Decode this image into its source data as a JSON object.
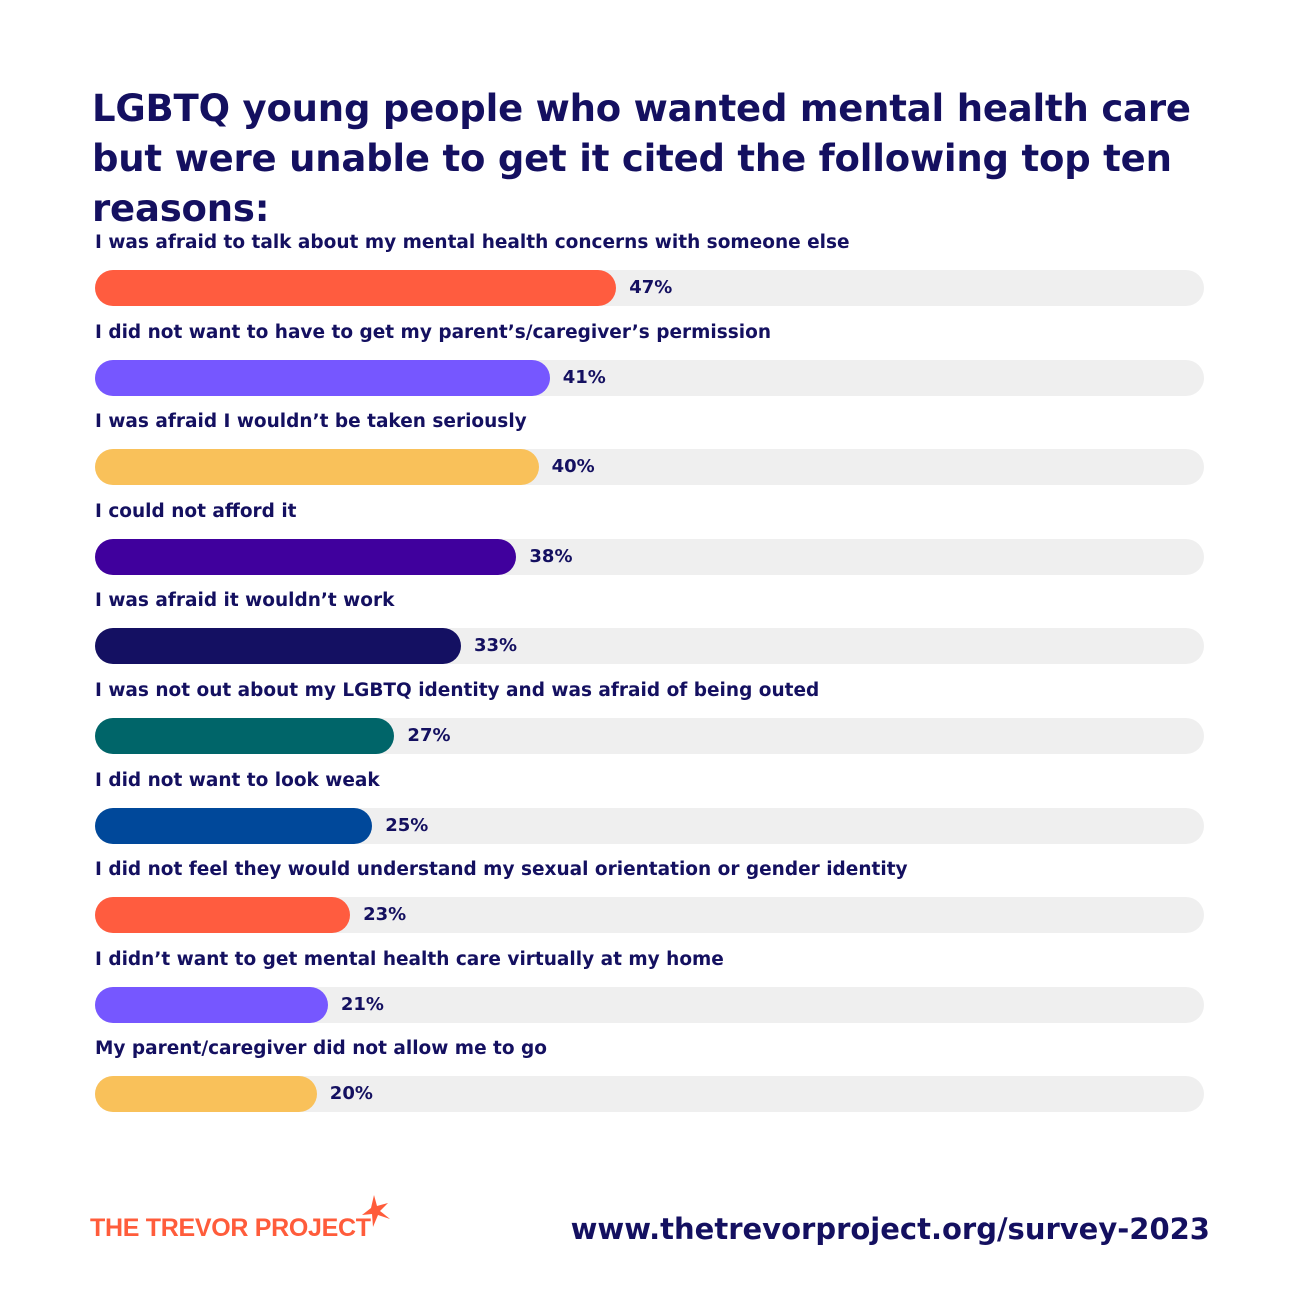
{
  "chart_data": {
    "type": "bar",
    "orientation": "horizontal",
    "title": "LGBTQ young people who wanted mental health care but were unable to get it cited the following top ten reasons:",
    "xlim": [
      0,
      100
    ],
    "categories": [
      "I was afraid to talk about my mental health concerns with someone else",
      "I did not want to have to get my parent’s/caregiver’s permission",
      "I was afraid I wouldn’t be taken seriously",
      "I could not afford it",
      "I was afraid it wouldn’t work",
      "I was not out about my LGBTQ identity and was afraid of being outed",
      "I did not want to look weak",
      "I did not feel they would understand my sexual orientation or gender identity",
      "I didn’t want to get mental health care virtually at my home",
      "My parent/caregiver did not allow me to go"
    ],
    "values": [
      47,
      41,
      40,
      38,
      33,
      27,
      25,
      23,
      21,
      20
    ],
    "value_labels": [
      "47%",
      "41%",
      "40%",
      "38%",
      "33%",
      "27%",
      "25%",
      "23%",
      "21%",
      "20%"
    ],
    "colors": [
      "#ff5c3f",
      "#7657ff",
      "#f9c15a",
      "#40009d",
      "#141062",
      "#006569",
      "#00489a",
      "#ff5c3f",
      "#7657ff",
      "#f9c15a"
    ],
    "track_color": "#efefef",
    "grid": false
  },
  "footer": {
    "logo_text": "THE TREVOR PROJECT",
    "logo_icon": "star-icon",
    "url": "www.thetrevorproject.org/survey-2023"
  }
}
